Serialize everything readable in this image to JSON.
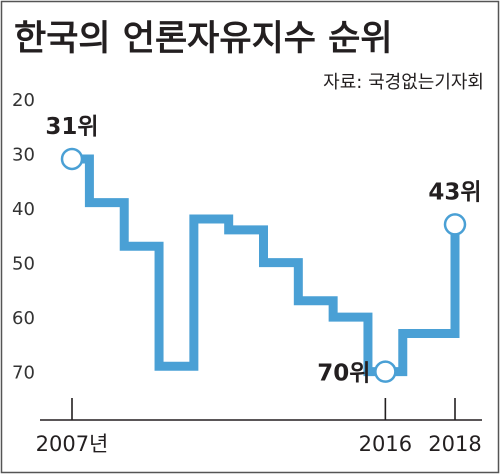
{
  "chart_data": {
    "type": "line",
    "title": "한국의 언론자유지수 순위",
    "subtitle": "자료: 국경없는기자회",
    "x": [
      2007,
      2008,
      2009,
      2010,
      2011,
      2012,
      2013,
      2014,
      2015,
      2016,
      2017,
      2018
    ],
    "x_tick_labels": [
      {
        "x": 2007,
        "label": "2007년"
      },
      {
        "x": 2016,
        "label": "2016"
      },
      {
        "x": 2018,
        "label": "2018"
      }
    ],
    "series": [
      {
        "values": [
          31,
          39,
          47,
          69,
          42,
          44,
          50,
          57,
          60,
          70,
          63,
          43
        ]
      }
    ],
    "y_ticks": [
      20,
      30,
      40,
      50,
      60,
      70
    ],
    "ylim": [
      20,
      73
    ],
    "y_inverted": true,
    "step": true,
    "grid": false,
    "annotations": [
      {
        "index": 0,
        "label": "31위",
        "position": "above"
      },
      {
        "index": 9,
        "label": "70위",
        "position": "left"
      },
      {
        "index": 11,
        "label": "43위",
        "position": "above"
      }
    ],
    "colors": {
      "line": "#4aa0d5",
      "marker_fill": "#ffffff",
      "text": "#231f20",
      "axis": "#231f20",
      "tick_text": "#333333",
      "border": "#555555"
    }
  }
}
